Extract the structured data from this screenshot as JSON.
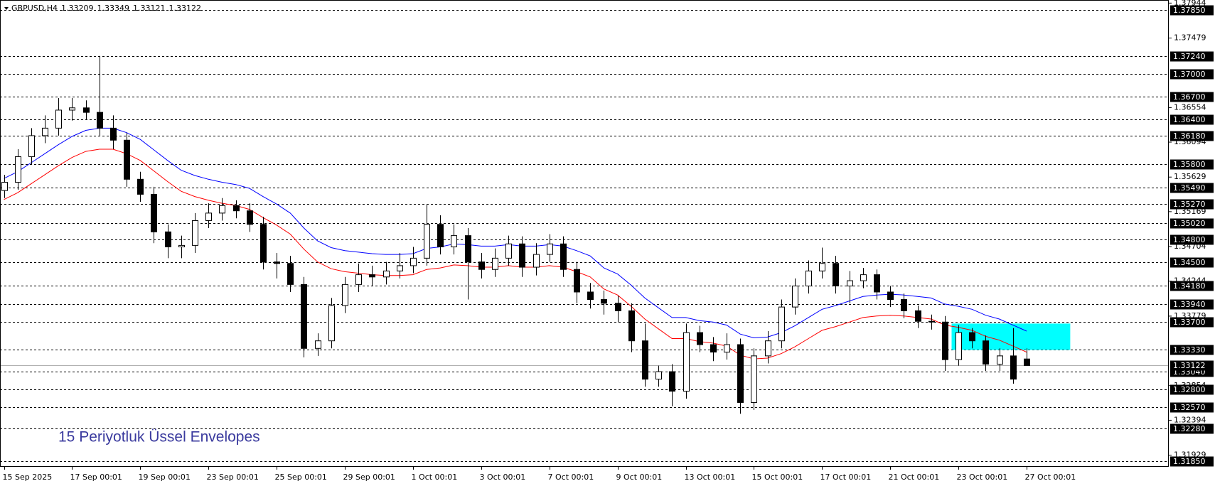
{
  "chart_data": {
    "type": "candlestick",
    "title": "GBPUSD,H4",
    "header_values": [
      1.33209,
      1.33349,
      1.33121,
      1.33122
    ],
    "annotation": "15  Periyotluk Üssel Envelopes",
    "categories": [
      "15 Sep 2025",
      null,
      null,
      null,
      null,
      "17 Sep 00:01",
      null,
      null,
      null,
      null,
      "19 Sep 00:01",
      null,
      null,
      null,
      null,
      "23 Sep 00:01",
      null,
      null,
      null,
      null,
      "25 Sep 00:01",
      null,
      null,
      null,
      null,
      "29 Sep 00:01",
      null,
      null,
      null,
      null,
      "1 Oct 00:01",
      null,
      null,
      null,
      null,
      "3 Oct 00:01",
      null,
      null,
      null,
      null,
      "7 Oct 00:01",
      null,
      null,
      null,
      null,
      "9 Oct 00:01",
      null,
      null,
      null,
      null,
      "13 Oct 00:01",
      null,
      null,
      null,
      null,
      "15 Oct 00:01",
      null,
      null,
      null,
      null,
      "17 Oct 00:01",
      null,
      null,
      null,
      null,
      "21 Oct 00:01",
      null,
      null,
      null,
      null,
      "23 Oct 00:01",
      null,
      null,
      null,
      null,
      "27 Oct 00:01"
    ],
    "open": [
      1.3545,
      1.3556,
      1.359,
      1.3618,
      1.3628,
      1.3652,
      1.3655,
      1.3649,
      1.3628,
      1.3612,
      1.356,
      1.354,
      1.349,
      1.347,
      1.3472,
      1.3505,
      1.3515,
      1.3525,
      1.3518,
      1.35,
      1.345,
      1.3448,
      1.342,
      1.3335,
      1.3345,
      1.3392,
      1.342,
      1.3433,
      1.343,
      1.3438,
      1.3445,
      1.3455,
      1.35,
      1.347,
      1.3485,
      1.345,
      1.344,
      1.3455,
      1.3474,
      1.3443,
      1.346,
      1.3474,
      1.344,
      1.341,
      1.34,
      1.3395,
      1.3385,
      1.3345,
      1.3294,
      1.3304,
      1.3278,
      1.3356,
      1.334,
      1.333,
      1.334,
      1.3263,
      1.3325,
      1.3345,
      1.339,
      1.3418,
      1.3438,
      1.3448,
      1.3418,
      1.3425,
      1.3433,
      1.341,
      1.34,
      1.3385,
      1.3371,
      1.337,
      1.332,
      1.3356,
      1.3345,
      1.3314,
      1.3325,
      1.33209
    ],
    "high": [
      1.3566,
      1.36,
      1.3628,
      1.3645,
      1.3668,
      1.3668,
      1.3665,
      1.3724,
      1.3645,
      1.3622,
      1.357,
      1.355,
      1.35,
      1.3485,
      1.3515,
      1.3528,
      1.3535,
      1.3532,
      1.3528,
      1.351,
      1.3462,
      1.3458,
      1.343,
      1.3355,
      1.3402,
      1.343,
      1.3448,
      1.3445,
      1.345,
      1.3462,
      1.347,
      1.3526,
      1.3512,
      1.35,
      1.3495,
      1.3462,
      1.3468,
      1.3485,
      1.3484,
      1.3475,
      1.3487,
      1.3484,
      1.345,
      1.3422,
      1.3412,
      1.3405,
      1.3395,
      1.3368,
      1.3312,
      1.3314,
      1.3368,
      1.3365,
      1.335,
      1.3355,
      1.3348,
      1.3335,
      1.3358,
      1.34,
      1.3428,
      1.3452,
      1.3469,
      1.3458,
      1.3438,
      1.3442,
      1.344,
      1.3418,
      1.3408,
      1.3392,
      1.338,
      1.3378,
      1.3366,
      1.3362,
      1.3352,
      1.3335,
      1.3362,
      1.33349
    ],
    "low": [
      1.3535,
      1.3546,
      1.358,
      1.3608,
      1.3618,
      1.3638,
      1.3639,
      1.3618,
      1.36,
      1.355,
      1.353,
      1.3475,
      1.3455,
      1.3455,
      1.3462,
      1.3495,
      1.3505,
      1.3508,
      1.349,
      1.344,
      1.3428,
      1.341,
      1.3323,
      1.3325,
      1.3335,
      1.3382,
      1.341,
      1.3418,
      1.342,
      1.3428,
      1.3435,
      1.3445,
      1.346,
      1.346,
      1.34,
      1.3428,
      1.343,
      1.3445,
      1.343,
      1.3432,
      1.345,
      1.343,
      1.3395,
      1.3388,
      1.338,
      1.337,
      1.333,
      1.3284,
      1.3284,
      1.3258,
      1.3268,
      1.333,
      1.3318,
      1.332,
      1.3248,
      1.3253,
      1.3315,
      1.3335,
      1.338,
      1.3408,
      1.3428,
      1.3408,
      1.3395,
      1.3415,
      1.34,
      1.339,
      1.3375,
      1.3362,
      1.336,
      1.3305,
      1.3312,
      1.3335,
      1.3305,
      1.3305,
      1.3288,
      1.33121
    ],
    "close": [
      1.3556,
      1.359,
      1.3618,
      1.3628,
      1.3652,
      1.3655,
      1.3649,
      1.3628,
      1.3612,
      1.356,
      1.354,
      1.349,
      1.347,
      1.3472,
      1.3505,
      1.3515,
      1.3525,
      1.3518,
      1.35,
      1.345,
      1.3448,
      1.342,
      1.3335,
      1.3345,
      1.3392,
      1.342,
      1.3433,
      1.343,
      1.3438,
      1.3445,
      1.3455,
      1.35,
      1.347,
      1.3485,
      1.345,
      1.344,
      1.3455,
      1.3474,
      1.3443,
      1.346,
      1.3474,
      1.344,
      1.341,
      1.34,
      1.3395,
      1.3385,
      1.3345,
      1.3294,
      1.3304,
      1.3278,
      1.3356,
      1.334,
      1.333,
      1.334,
      1.3263,
      1.3325,
      1.3345,
      1.339,
      1.3418,
      1.3438,
      1.3448,
      1.3418,
      1.3425,
      1.3433,
      1.341,
      1.34,
      1.3385,
      1.3371,
      1.337,
      1.332,
      1.3356,
      1.3345,
      1.3314,
      1.3325,
      1.3294,
      1.33122
    ],
    "up_color": "#ffffff",
    "down_color": "#000000",
    "envelope_upper": {
      "color": "#0000ff",
      "values": [
        1.3561,
        1.357,
        1.3582,
        1.3594,
        1.3606,
        1.3617,
        1.3625,
        1.3628,
        1.3628,
        1.3622,
        1.3613,
        1.3599,
        1.3585,
        1.3572,
        1.3565,
        1.356,
        1.3556,
        1.3553,
        1.3548,
        1.3537,
        1.3527,
        1.3515,
        1.3495,
        1.3478,
        1.3469,
        1.3465,
        1.3463,
        1.3461,
        1.346,
        1.346,
        1.3461,
        1.3468,
        1.347,
        1.3474,
        1.3473,
        1.3471,
        1.3471,
        1.3473,
        1.3471,
        1.3471,
        1.3473,
        1.3471,
        1.3465,
        1.3458,
        1.3442,
        1.3434,
        1.3419,
        1.3402,
        1.3389,
        1.3376,
        1.3376,
        1.3372,
        1.337,
        1.3366,
        1.3354,
        1.3349,
        1.335,
        1.3356,
        1.3365,
        1.3376,
        1.3387,
        1.3392,
        1.3398,
        1.3404,
        1.3406,
        1.3407,
        1.3406,
        1.3404,
        1.3402,
        1.3394,
        1.3391,
        1.3387,
        1.3379,
        1.3374,
        1.3366,
        1.3358
      ]
    },
    "envelope_lower": {
      "color": "#ff0000",
      "values": [
        1.3533,
        1.3542,
        1.3554,
        1.3566,
        1.3578,
        1.3589,
        1.3597,
        1.36,
        1.36,
        1.3594,
        1.3585,
        1.3571,
        1.3557,
        1.3544,
        1.3537,
        1.3532,
        1.3528,
        1.3525,
        1.352,
        1.3509,
        1.3499,
        1.3487,
        1.3467,
        1.345,
        1.3441,
        1.3437,
        1.3435,
        1.3433,
        1.3432,
        1.3432,
        1.3433,
        1.344,
        1.3442,
        1.3446,
        1.3445,
        1.3443,
        1.3443,
        1.3445,
        1.3443,
        1.3443,
        1.3445,
        1.3443,
        1.3437,
        1.343,
        1.3414,
        1.3406,
        1.3391,
        1.3374,
        1.3361,
        1.3348,
        1.3348,
        1.3344,
        1.3342,
        1.3338,
        1.3326,
        1.3321,
        1.3322,
        1.3328,
        1.3337,
        1.3348,
        1.3359,
        1.3364,
        1.337,
        1.3376,
        1.3378,
        1.3379,
        1.3378,
        1.3376,
        1.3374,
        1.3366,
        1.3363,
        1.3359,
        1.3351,
        1.3346,
        1.3338,
        1.333
      ]
    },
    "zone": {
      "top": 1.3368,
      "bottom": 1.3333,
      "color": "#00ffff"
    },
    "ylim": [
      1.31774,
      1.37985
    ],
    "yticks": [
      1.37944,
      1.37479,
      1.36554,
      1.36094,
      1.35629,
      1.35169,
      1.34704,
      1.34244,
      1.33779,
      1.32854,
      1.32394,
      1.31929
    ],
    "levels": [
      {
        "value": 1.3785,
        "label": "1.37850"
      },
      {
        "value": 1.3724,
        "label": "1.37240"
      },
      {
        "value": 1.37,
        "label": "1.37000"
      },
      {
        "value": 1.367,
        "label": "1.36700"
      },
      {
        "value": 1.364,
        "label": "1.36400"
      },
      {
        "value": 1.3618,
        "label": "1.36180"
      },
      {
        "value": 1.358,
        "label": "1.35800"
      },
      {
        "value": 1.3549,
        "label": "1.35490"
      },
      {
        "value": 1.3527,
        "label": "1.35270"
      },
      {
        "value": 1.3502,
        "label": "1.35020"
      },
      {
        "value": 1.348,
        "label": "1.34800"
      },
      {
        "value": 1.345,
        "label": "1.34500"
      },
      {
        "value": 1.3418,
        "label": "1.34180"
      },
      {
        "value": 1.3394,
        "label": "1.33940"
      },
      {
        "value": 1.337,
        "label": "1.33700"
      },
      {
        "value": 1.3333,
        "label": "1.33330"
      },
      {
        "value": 1.3304,
        "label": "1.33040"
      },
      {
        "value": 1.328,
        "label": "1.32800"
      },
      {
        "value": 1.3257,
        "label": "1.32570"
      },
      {
        "value": 1.3228,
        "label": "1.32280"
      },
      {
        "value": 1.3185,
        "label": "1.31850"
      }
    ],
    "bid": 1.33122
  }
}
